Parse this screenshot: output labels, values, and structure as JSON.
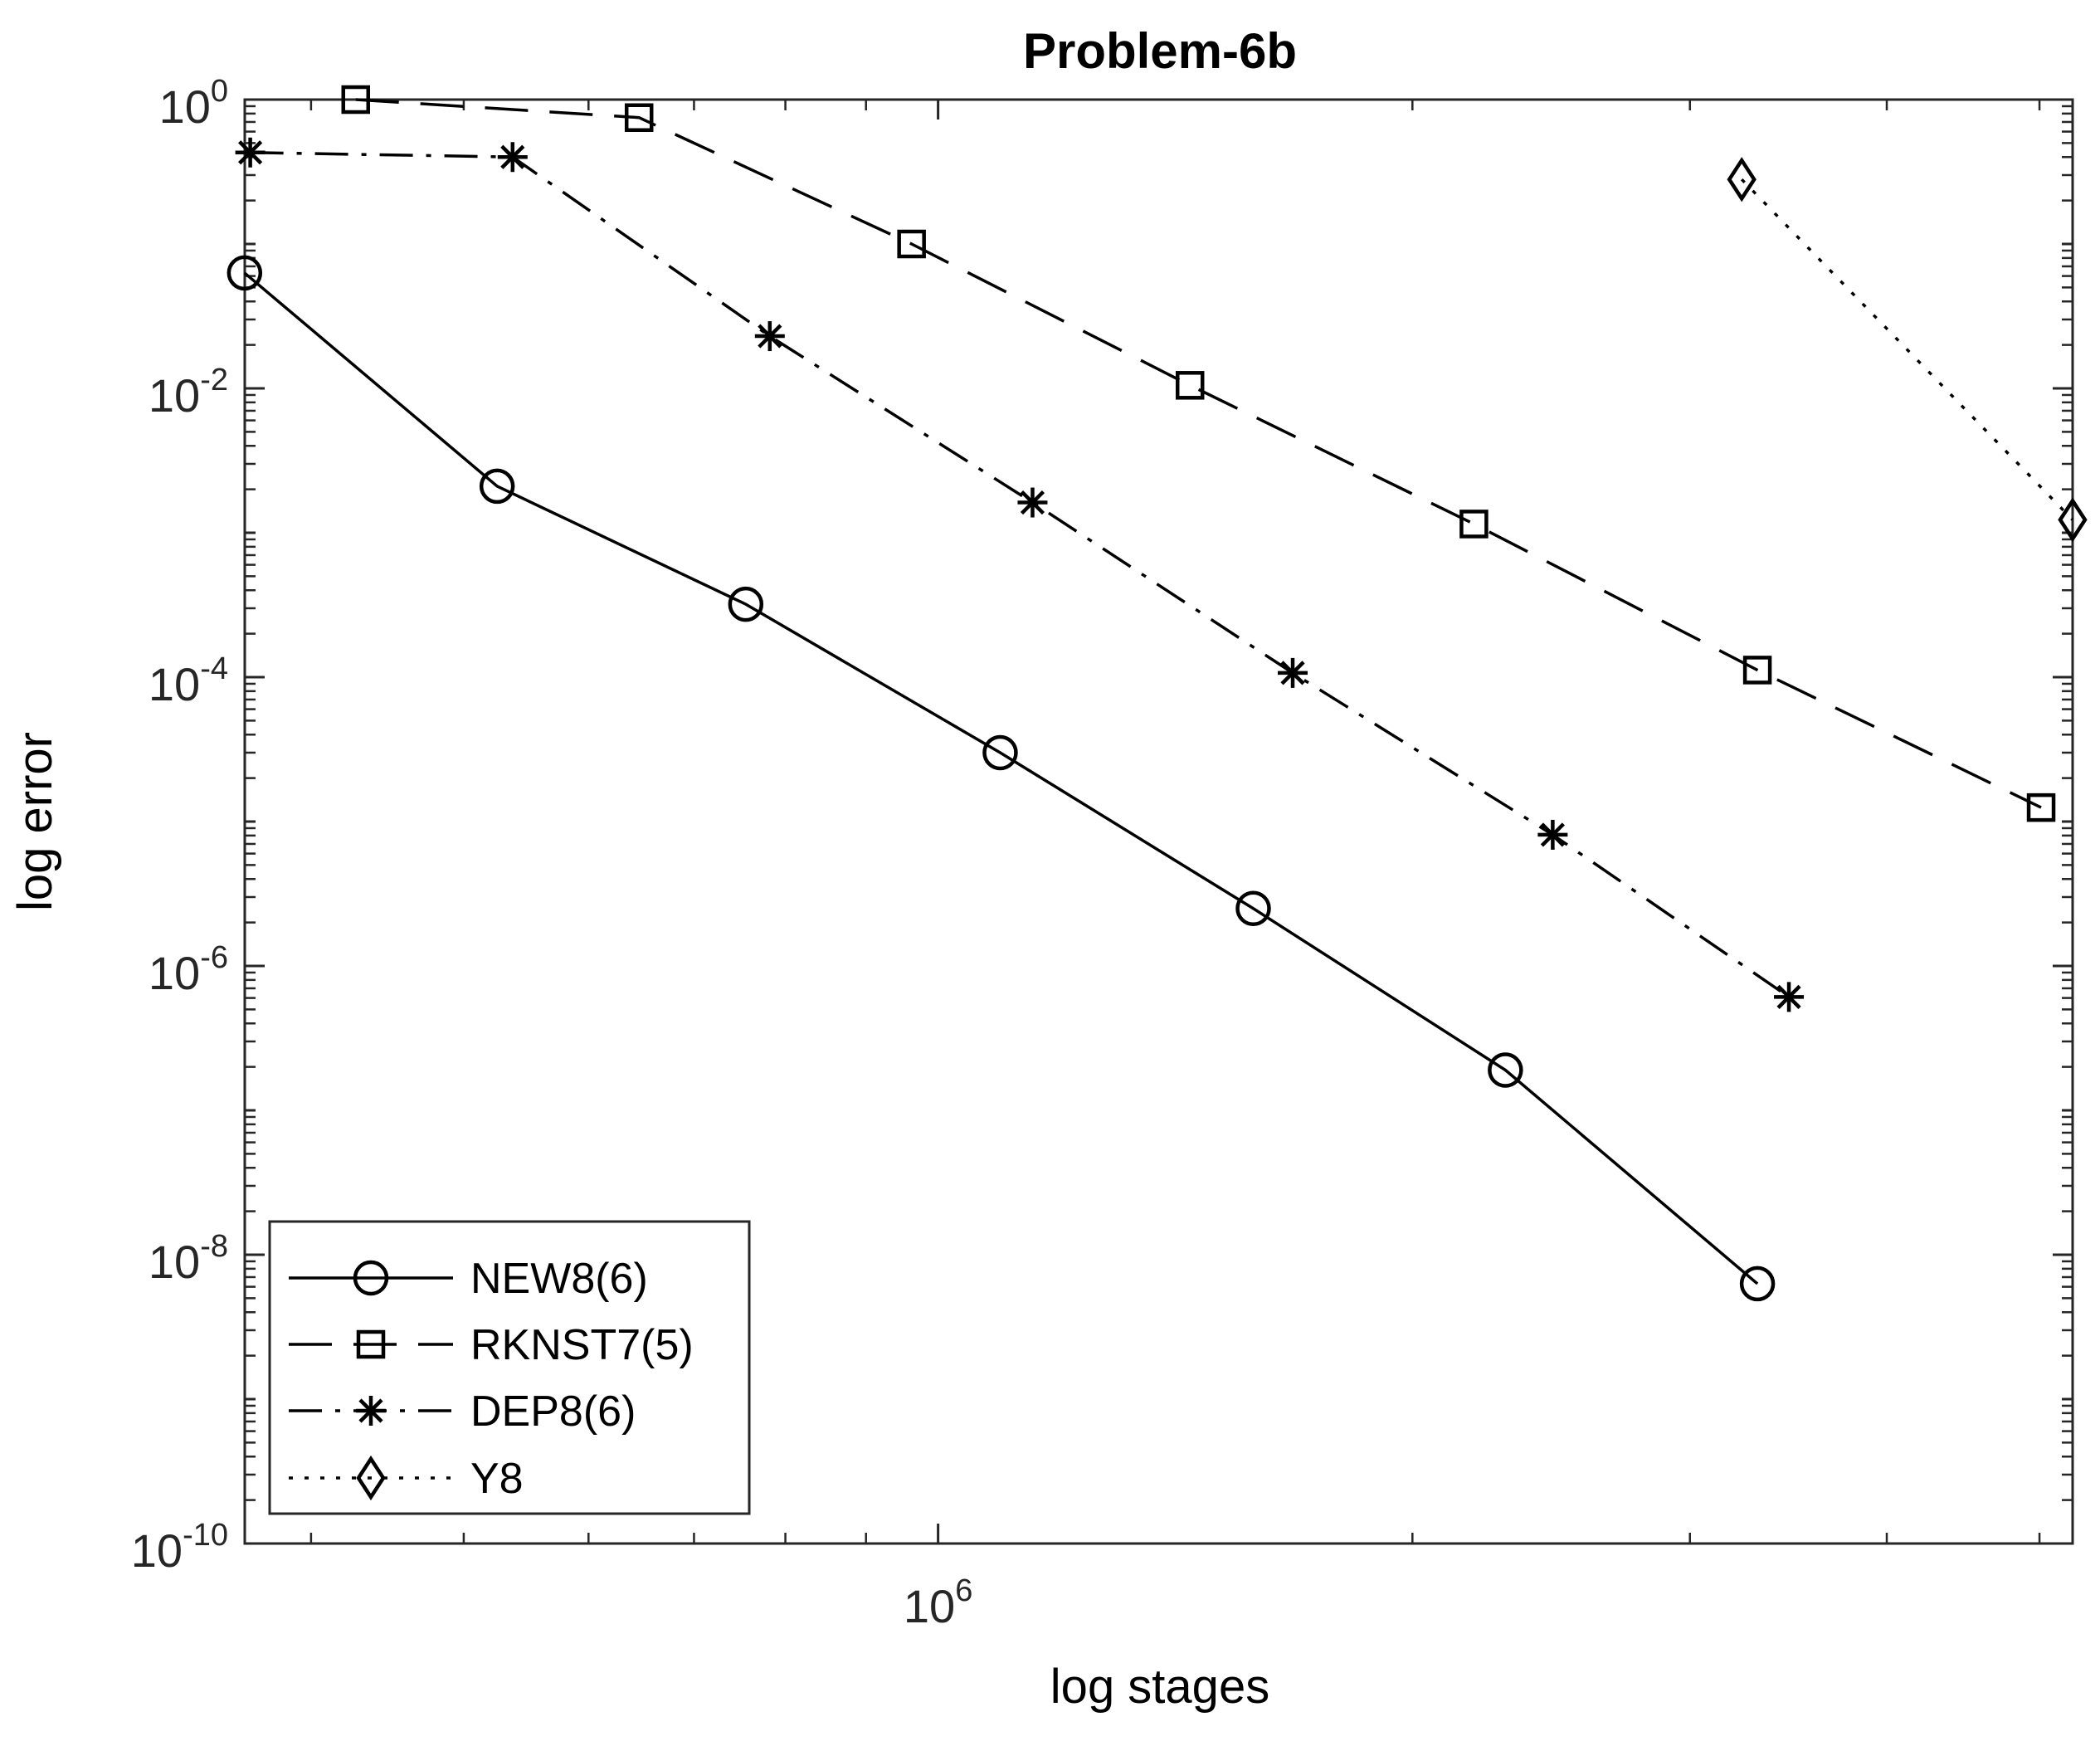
{
  "chart_data": {
    "type": "line",
    "title": "Problem-6b",
    "xlabel": "log stages",
    "ylabel": "log error",
    "xscale": "log",
    "yscale": "log",
    "xlim": [
      363078,
      5248075
    ],
    "ylim": [
      1e-10,
      1
    ],
    "grid": false,
    "legend_position": "bottom-left",
    "x_ticks": [
      {
        "value": 1000000,
        "base": "10",
        "exp": "6"
      }
    ],
    "y_ticks": [
      {
        "value": 1,
        "base": "10",
        "exp": "0"
      },
      {
        "value": 0.01,
        "base": "10",
        "exp": "-2"
      },
      {
        "value": 0.0001,
        "base": "10",
        "exp": "-4"
      },
      {
        "value": 1e-06,
        "base": "10",
        "exp": "-6"
      },
      {
        "value": 1e-08,
        "base": "10",
        "exp": "-8"
      },
      {
        "value": 1e-10,
        "base": "10",
        "exp": "-10"
      }
    ],
    "series": [
      {
        "name": "NEW8(6)",
        "line_style": "solid",
        "marker": "circle",
        "x": [
          363000,
          525000,
          755000,
          1095000,
          1585000,
          2291000,
          3311000
        ],
        "y": [
          0.063,
          0.0021,
          0.00032,
          3e-05,
          2.5e-06,
          1.9e-07,
          6.3e-09
        ]
      },
      {
        "name": "RKNST7(5)",
        "line_style": "dashed",
        "marker": "square",
        "x": [
          427000,
          646000,
          962000,
          1445000,
          2188000,
          3311000,
          5012000
        ],
        "y": [
          1.0,
          0.75,
          0.1,
          0.0105,
          0.00115,
          0.000112,
          1.25e-05
        ]
      },
      {
        "name": "DEP8(6)",
        "line_style": "dashdot",
        "marker": "asterisk",
        "x": [
          366000,
          537000,
          782000,
          1148000,
          1679000,
          2455000,
          3467000
        ],
        "y": [
          0.43,
          0.4,
          0.023,
          0.00162,
          0.000107,
          8.1e-06,
          6.1e-07
        ]
      },
      {
        "name": "Y8",
        "line_style": "dotted",
        "marker": "diamond",
        "x": [
          3236000,
          5248000
        ],
        "y": [
          0.28,
          0.00123
        ]
      }
    ]
  }
}
